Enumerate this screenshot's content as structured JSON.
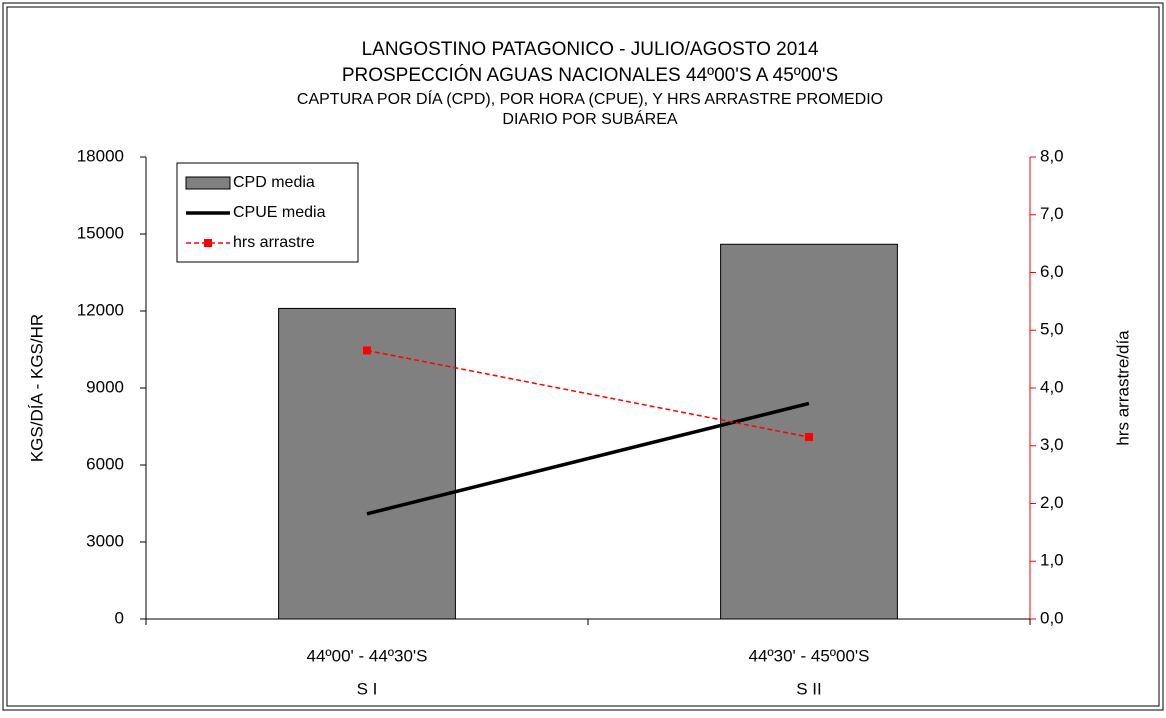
{
  "chart_data": {
    "type": "bar",
    "title": [
      "LANGOSTINO PATAGONICO   - JULIO/AGOSTO  2014",
      "PROSPECCIÓN AGUAS NACIONALES 44º00'S A 45º00'S",
      "CAPTURA POR DÍA (CPD), POR HORA (CPUE), Y HRS ARRASTRE PROMEDIO",
      "DIARIO POR SUBÁREA"
    ],
    "categories": [
      "44º00' - 44º30'S",
      "44º30' - 45º00'S"
    ],
    "subcategories": [
      "S I",
      "S II"
    ],
    "y_label": "KGS/DÍA - KGS/HR",
    "y2_label": "hrs arrastre/día",
    "ylim": [
      0,
      18000
    ],
    "yticks": [
      0,
      3000,
      6000,
      9000,
      12000,
      15000,
      18000
    ],
    "y2lim": [
      0,
      8
    ],
    "y2ticks": [
      {
        "value": 0,
        "label": "0,0"
      },
      {
        "value": 1,
        "label": "1,0"
      },
      {
        "value": 2,
        "label": "2,0"
      },
      {
        "value": 3,
        "label": "3,0"
      },
      {
        "value": 4,
        "label": "4,0"
      },
      {
        "value": 5,
        "label": "5,0"
      },
      {
        "value": 6,
        "label": "6,0"
      },
      {
        "value": 7,
        "label": "7,0"
      },
      {
        "value": 8,
        "label": "8,0"
      }
    ],
    "legend": "top-left",
    "series": [
      {
        "name": "CPD media",
        "type": "bar",
        "color": "#808080",
        "values": [
          12100,
          14600
        ]
      },
      {
        "name": "CPUE media",
        "type": "line",
        "color": "#000000",
        "values": [
          4100,
          8400
        ]
      },
      {
        "name": "hrs arrastre",
        "type": "line",
        "dashed": true,
        "marker": "square",
        "axis": "y2",
        "color": "#ff0000",
        "values": [
          4.65,
          3.15
        ]
      }
    ]
  }
}
